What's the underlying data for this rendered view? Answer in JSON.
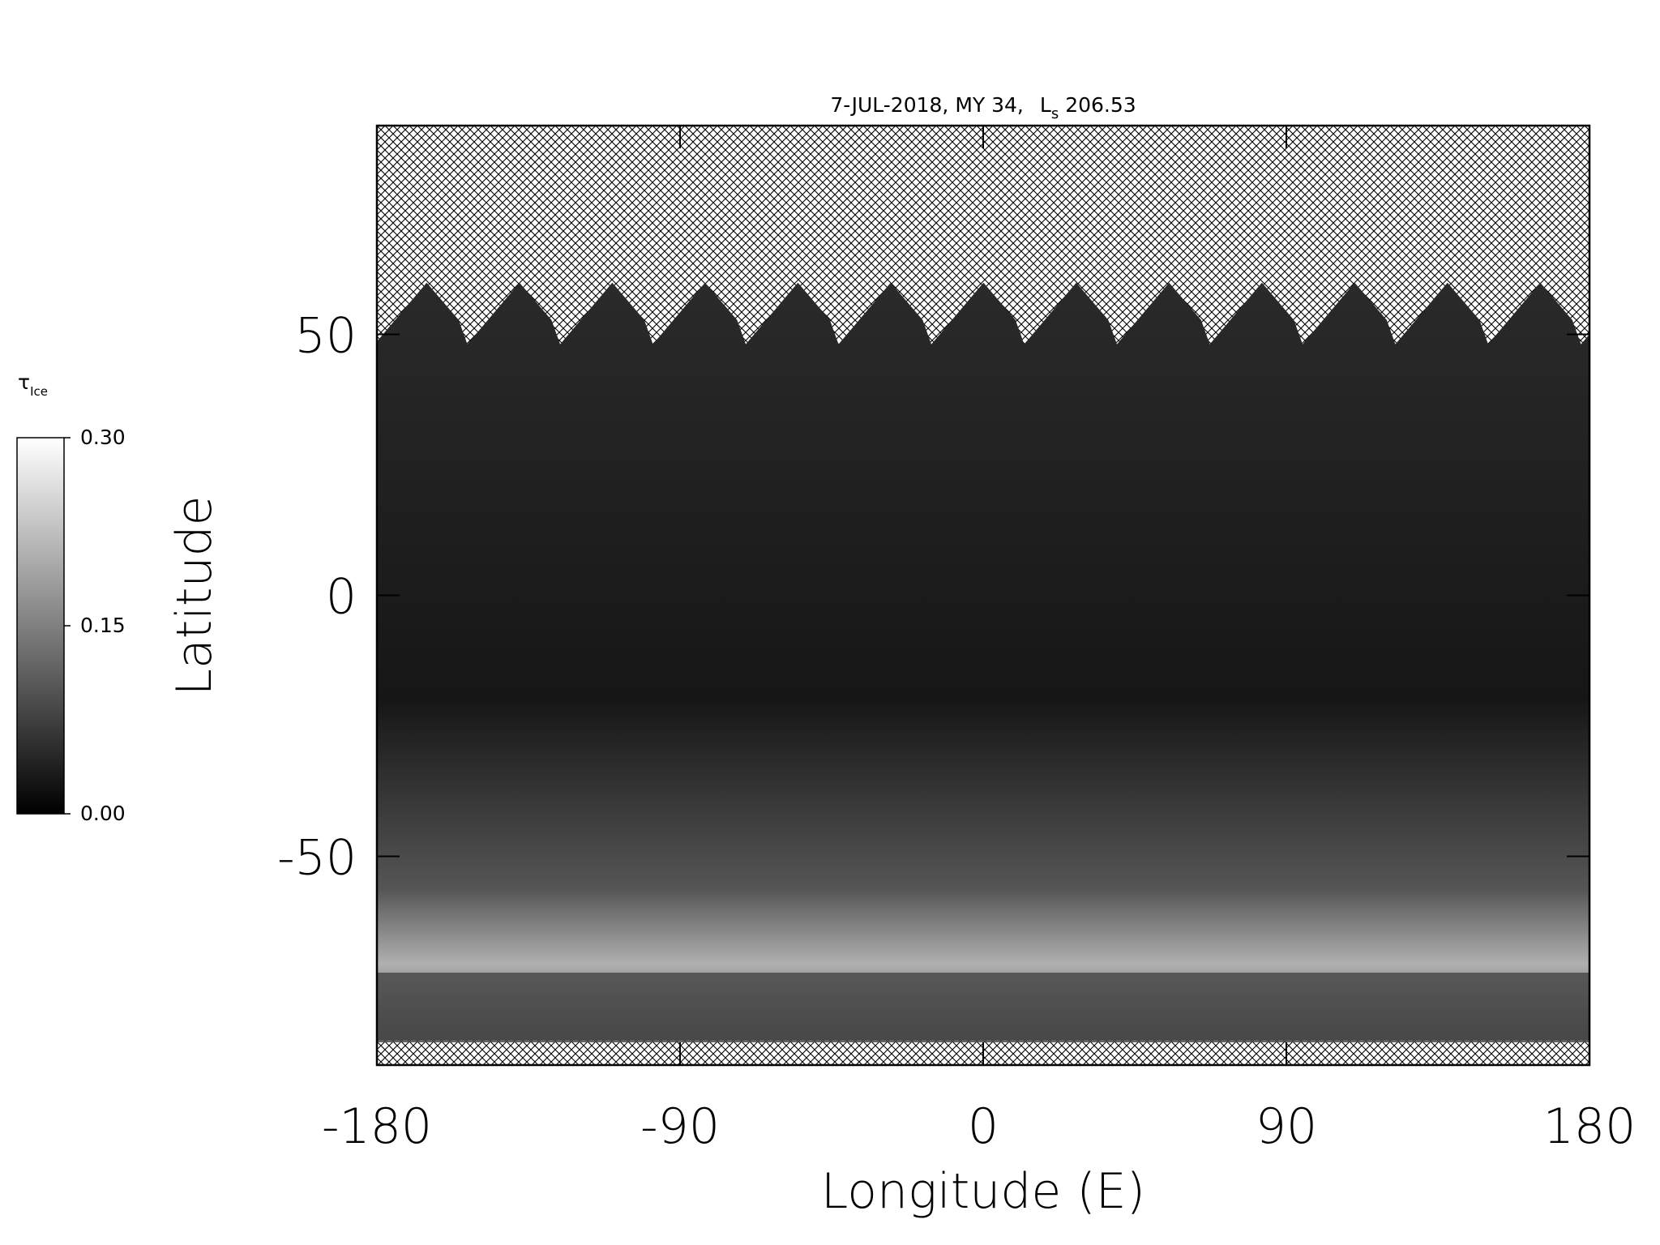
{
  "chart_data": {
    "type": "map",
    "title": "7-JUL-2018, MY 34,",
    "title_symbol": "L",
    "title_symbol_subscript": "s",
    "title_value": "206.53",
    "x_label": "Longitude (E)",
    "y_label": "Latitude",
    "xlim": [
      -180,
      180
    ],
    "xticks": [
      -180,
      -90,
      0,
      90,
      180
    ],
    "ylim": [
      -90,
      90
    ],
    "yticks": [
      -50,
      0,
      50
    ],
    "colorbar": {
      "label": "τ",
      "label_subscript": "Ice",
      "lim": [
        0,
        0.3
      ],
      "ticks": [
        {
          "value": 0,
          "label": "0.00"
        },
        {
          "value": 0.15,
          "label": "0.15"
        },
        {
          "value": 0.3,
          "label": "0.30"
        }
      ],
      "colors": [
        "#000000",
        "#ffffff"
      ]
    }
  }
}
